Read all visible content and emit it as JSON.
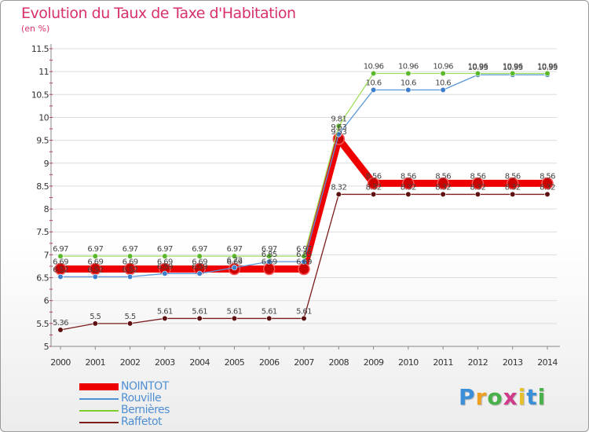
{
  "title": "Evolution du Taux de Taxe d'Habitation",
  "unit": "(en %)",
  "brand": {
    "letters": [
      "P",
      "r",
      "o",
      "x",
      "i",
      "t",
      "i"
    ]
  },
  "chart_data": {
    "type": "line",
    "x": [
      2000,
      2001,
      2002,
      2003,
      2004,
      2005,
      2006,
      2007,
      2008,
      2009,
      2010,
      2011,
      2012,
      2013,
      2014
    ],
    "xlabels": [
      "2000",
      "2001",
      "2002",
      "2003",
      "2004",
      "2005",
      "2006",
      "2007",
      "2008",
      "2009",
      "2010",
      "2011",
      "2012",
      "2013",
      "2014"
    ],
    "ylim": [
      5,
      11.5
    ],
    "yticks": [
      5,
      5.5,
      6,
      6.5,
      7,
      7.5,
      8,
      8.5,
      9,
      9.5,
      10,
      10.5,
      11,
      11.5
    ],
    "yticklabels": [
      "5",
      "5.5",
      "6",
      "6.5",
      "7",
      "7.5",
      "8",
      "8.5",
      "9",
      "9.5",
      "10",
      "10.5",
      "11",
      "11.5"
    ],
    "grid": "horizontal",
    "series": [
      {
        "name": "NOINTOT",
        "color": "#ee0000",
        "values": [
          6.69,
          6.69,
          6.69,
          6.69,
          6.69,
          6.69,
          6.69,
          6.69,
          9.53,
          8.56,
          8.56,
          8.56,
          8.56,
          8.56,
          8.56
        ],
        "labels": [
          "6.69",
          "6.69",
          "6.69",
          "6.69",
          "6.69",
          "6.69",
          "6.69",
          "6.69",
          "9.53",
          "8.56",
          "8.56",
          "8.56",
          "8.56",
          "8.56",
          "8.56"
        ]
      },
      {
        "name": "Rouville",
        "color": "#4f8fd4",
        "values": [
          6.52,
          6.52,
          6.52,
          6.59,
          6.59,
          6.72,
          6.85,
          6.85,
          9.63,
          10.6,
          10.6,
          10.6,
          10.93,
          10.93,
          10.93
        ],
        "labels": [
          "6.52",
          "6.52",
          "6.52",
          "6.59",
          "6.59",
          "6.72",
          "6.85",
          "6.85",
          "9.63",
          "10.6",
          "10.6",
          "10.6",
          "10.93",
          "10.93",
          "10.93"
        ]
      },
      {
        "name": "Bernières",
        "color": "#7fd02d",
        "values": [
          6.97,
          6.97,
          6.97,
          6.97,
          6.97,
          6.97,
          6.97,
          6.97,
          9.81,
          10.96,
          10.96,
          10.96,
          10.96,
          10.96,
          10.96
        ],
        "labels": [
          "6.97",
          "6.97",
          "6.97",
          "6.97",
          "6.97",
          "6.97",
          "6.97",
          "6.97",
          "9.81",
          "10.96",
          "10.96",
          "10.96",
          "10.96",
          "10.96",
          "10.96"
        ]
      },
      {
        "name": "Raffetot",
        "color": "#7a1c1c",
        "values": [
          5.36,
          5.5,
          5.5,
          5.61,
          5.61,
          5.61,
          5.61,
          5.61,
          8.32,
          8.32,
          8.32,
          8.32,
          8.32,
          8.32,
          8.32
        ],
        "labels": [
          "5.36",
          "5.5",
          "5.5",
          "5.61",
          "5.61",
          "5.61",
          "5.61",
          "5.61",
          "8.32",
          "8.32",
          "8.32",
          "8.32",
          "8.32",
          "8.32",
          "8.32"
        ]
      }
    ],
    "legend": "bottom-left"
  }
}
